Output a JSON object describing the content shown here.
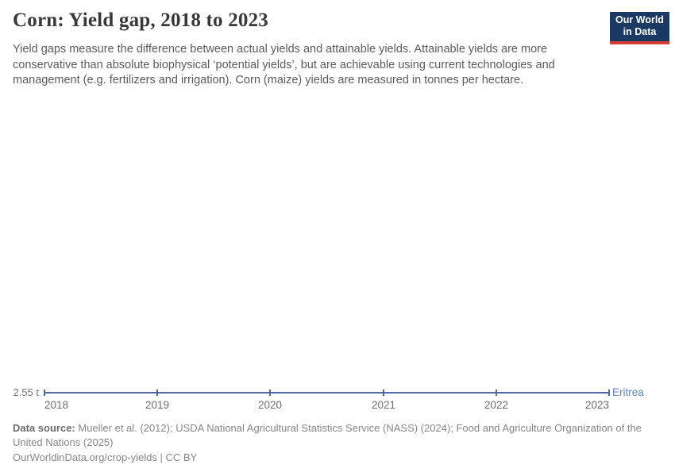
{
  "header": {
    "title": "Corn: Yield gap, 2018 to 2023",
    "subtitle": "Yield gaps measure the difference between actual yields and attainable yields. Attainable yields are more conservative than absolute biophysical ‘potential yields’, but are achievable using current technologies and management (e.g. fertilizers and irrigation). Corn (maize) yields are measured in tonnes per hectare.",
    "logo": {
      "line1": "Our World",
      "line2": "in Data",
      "bg_color": "#1a3a64",
      "accent_color": "#d63e32"
    }
  },
  "chart_data": {
    "type": "line",
    "title": "Corn: Yield gap, 2018 to 2023",
    "unit": "tonnes per hectare",
    "x": [
      2018,
      2019,
      2020,
      2021,
      2022,
      2023
    ],
    "x_tick_labels": [
      "2018",
      "2019",
      "2020",
      "2021",
      "2022",
      "2023"
    ],
    "series": [
      {
        "name": "Eritrea",
        "values": [
          2.55,
          2.55,
          2.55,
          2.55,
          2.55,
          2.55
        ],
        "color": "#4b699f"
      }
    ],
    "y_tick_label": "2.55 t",
    "ylim": [
      2.55,
      2.55
    ],
    "grid": false,
    "legend_position": "end-of-line"
  },
  "footer": {
    "data_source_label": "Data source:",
    "data_source_text": " Mueller et al. (2012); USDA National Agricultural Statistics Service (NASS) (2024); Food and Agriculture Organization of the United Nations (2025)",
    "link_text": "OurWorldinData.org/crop-yields",
    "separator": " | ",
    "license_text": "CC BY"
  }
}
